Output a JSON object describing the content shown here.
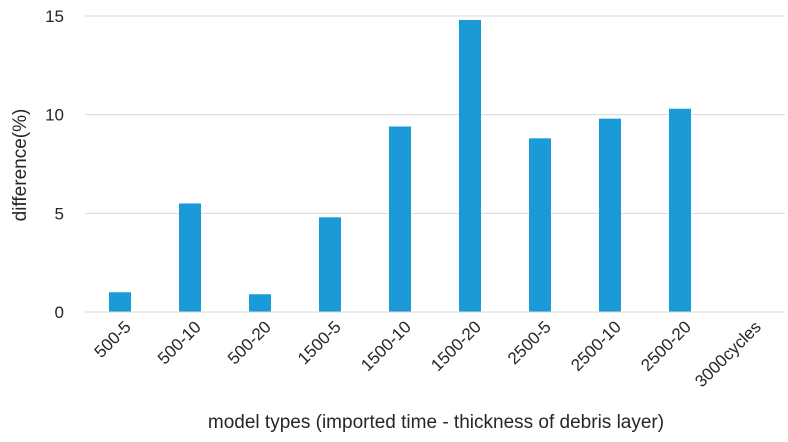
{
  "chart_data": {
    "type": "bar",
    "title": "",
    "xlabel": "model types (imported time - thickness of debris layer)",
    "ylabel": "difference(%)",
    "ylim": [
      0,
      15
    ],
    "yticks": [
      0,
      5,
      10,
      15
    ],
    "grid": true,
    "legend": "none",
    "bar_color": "#1a9ad6",
    "categories": [
      "500-5",
      "500-10",
      "500-20",
      "1500-5",
      "1500-10",
      "1500-20",
      "2500-5",
      "2500-10",
      "2500-20",
      "3000cycles"
    ],
    "values": [
      1.0,
      5.5,
      0.9,
      4.8,
      9.4,
      14.8,
      8.8,
      9.8,
      10.3,
      null
    ]
  }
}
